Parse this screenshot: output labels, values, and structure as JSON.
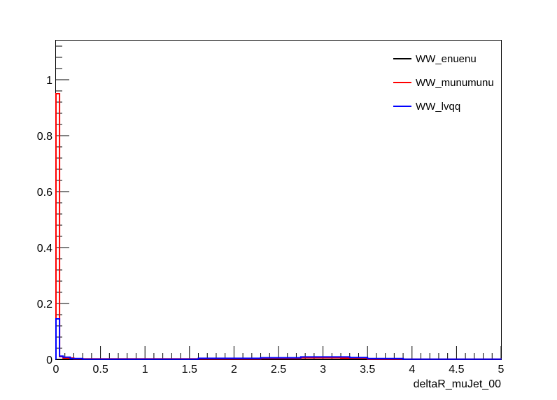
{
  "chart_data": {
    "type": "histogram",
    "title": "",
    "xlabel": "deltaR_muJet_00",
    "ylabel": "",
    "xlim": [
      0,
      5
    ],
    "ylim": [
      0,
      1.14
    ],
    "bin_width": 0.04,
    "x_ticks": [
      {
        "value": 0,
        "label": "0"
      },
      {
        "value": 0.5,
        "label": "0.5"
      },
      {
        "value": 1,
        "label": "1"
      },
      {
        "value": 1.5,
        "label": "1.5"
      },
      {
        "value": 2,
        "label": "2"
      },
      {
        "value": 2.5,
        "label": "2.5"
      },
      {
        "value": 3,
        "label": "3"
      },
      {
        "value": 3.5,
        "label": "3.5"
      },
      {
        "value": 4,
        "label": "4"
      },
      {
        "value": 4.5,
        "label": "4.5"
      },
      {
        "value": 5,
        "label": "5"
      }
    ],
    "y_ticks": [
      {
        "value": 0,
        "label": "0"
      },
      {
        "value": 0.2,
        "label": "0.2"
      },
      {
        "value": 0.4,
        "label": "0.4"
      },
      {
        "value": 0.6,
        "label": "0.6"
      },
      {
        "value": 0.8,
        "label": "0.8"
      },
      {
        "value": 1,
        "label": "1"
      }
    ],
    "grid": false,
    "legend_position": "top-right",
    "series": [
      {
        "name": "WW_enuenu",
        "color": "#000000",
        "segments": [
          [
            0.0,
            0.04,
            0.0
          ],
          [
            0.04,
            5.0,
            0.0
          ]
        ]
      },
      {
        "name": "WW_munumunu",
        "color": "#ff0000",
        "segments": [
          [
            0.0,
            0.04,
            0.95
          ],
          [
            0.04,
            0.08,
            0.01
          ],
          [
            0.08,
            0.2,
            0.005
          ],
          [
            0.2,
            2.3,
            0.002
          ],
          [
            2.3,
            2.75,
            0.004
          ],
          [
            2.75,
            3.2,
            0.006
          ],
          [
            3.2,
            3.5,
            0.005
          ],
          [
            3.5,
            5.0,
            0.001
          ]
        ]
      },
      {
        "name": "WW_lvqq",
        "color": "#0000ff",
        "segments": [
          [
            0.0,
            0.04,
            0.145
          ],
          [
            0.04,
            0.08,
            0.012
          ],
          [
            0.08,
            0.16,
            0.008
          ],
          [
            0.16,
            0.3,
            0.003
          ],
          [
            0.3,
            1.6,
            0.001
          ],
          [
            1.6,
            2.3,
            0.004
          ],
          [
            2.3,
            2.75,
            0.006
          ],
          [
            2.75,
            3.3,
            0.009
          ],
          [
            3.3,
            3.5,
            0.007
          ],
          [
            3.5,
            3.9,
            0.003
          ],
          [
            3.9,
            5.0,
            0.001
          ]
        ]
      }
    ]
  }
}
